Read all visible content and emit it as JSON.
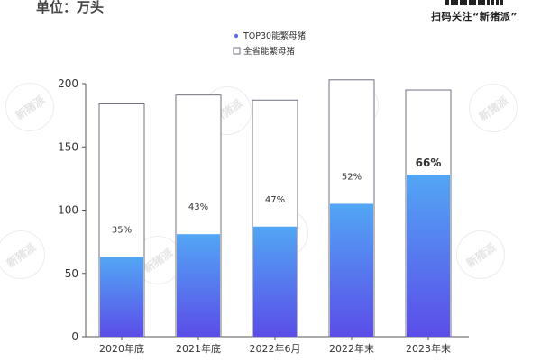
{
  "header": {
    "unit_label": "单位：万头",
    "brand_slogan": "扫码关注“新猪派”",
    "watermark_text": "新猪派"
  },
  "chart_data": {
    "type": "bar",
    "title": "",
    "xlabel": "",
    "ylabel": "万头",
    "ylim": [
      0,
      200
    ],
    "yticks": [
      0,
      50,
      100,
      150,
      200
    ],
    "categories": [
      "2020年底",
      "2021年底",
      "2022年6月",
      "2022年末",
      "2023年末"
    ],
    "series": [
      {
        "name": "全省能繁母猪",
        "values": [
          184,
          191,
          187,
          203,
          195
        ],
        "style": "outline",
        "color": "#6f7282"
      },
      {
        "name": "TOP30能繁母猪",
        "values": [
          63,
          81,
          87,
          105,
          128
        ],
        "style": "gradient",
        "color_top": "#52a6f5",
        "color_bottom": "#5b4de8",
        "color": "#5b6fe8"
      }
    ],
    "labels": [
      "35%",
      "43%",
      "47%",
      "52%",
      "66%"
    ],
    "legend": [
      "TOP30能繁母猪",
      "全省能繁母猪"
    ],
    "legend_position": "top-center",
    "grid": false
  }
}
